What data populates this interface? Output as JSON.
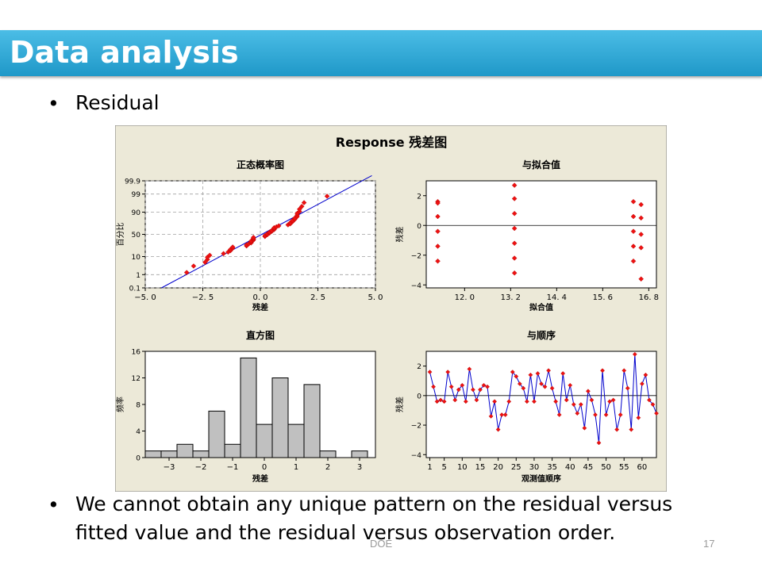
{
  "slide": {
    "title": "Data analysis",
    "bullets": [
      {
        "marker": "•",
        "text": "Residual"
      },
      {
        "marker": "•",
        "text": "We cannot obtain any unique pattern on the residual versus fitted value and the residual versus observation order.",
        "lines": [
          "We cannot obtain any unique pattern on the residual versus",
          "fitted value and the residual versus observation order."
        ]
      }
    ],
    "footer": "DOE",
    "page_number": "17"
  },
  "figure": {
    "title": "Response  残差图",
    "colors": {
      "background": "#ece9d8",
      "plot_bg": "#ffffff",
      "point": "#ee1111",
      "line": "#0000cc",
      "grid": "#a0a0a0",
      "bar": "#c0c0c0"
    }
  },
  "chart_data": [
    {
      "type": "scatter",
      "title": "正态概率图",
      "xlabel": "残差",
      "ylabel": "百分比",
      "xlim": [
        -5.0,
        5.0
      ],
      "xticks": [
        "−5. 0",
        "−2. 5",
        "0. 0",
        "2. 5",
        "5. 0"
      ],
      "xtick_values": [
        -5,
        -2.5,
        0,
        2.5,
        5
      ],
      "yscale": "normal-probability",
      "yticks": [
        "99.9",
        "99",
        "90",
        "50",
        "10",
        "1",
        "0.1"
      ],
      "ytick_values": [
        99.9,
        99,
        90,
        50,
        10,
        1,
        0.1
      ],
      "grid": true,
      "reference_line": true,
      "residuals": [
        -3.2,
        -2.9,
        -2.4,
        -2.3,
        -2.3,
        -2.2,
        -1.6,
        -1.4,
        -1.3,
        -1.3,
        -1.2,
        -1.2,
        -0.6,
        -0.6,
        -0.5,
        -0.4,
        -0.4,
        -0.4,
        -0.3,
        -0.3,
        -0.3,
        -0.3,
        0.2,
        0.2,
        0.3,
        0.3,
        0.4,
        0.4,
        0.5,
        0.5,
        0.6,
        0.6,
        0.6,
        0.7,
        0.8,
        1.2,
        1.3,
        1.3,
        1.4,
        1.4,
        1.5,
        1.5,
        1.6,
        1.6,
        1.6,
        1.7,
        1.7,
        1.8,
        1.9,
        2.9
      ]
    },
    {
      "type": "scatter",
      "title": "与拟合值",
      "xlabel": "拟合值",
      "ylabel": "残差",
      "xlim": [
        11.0,
        17.0
      ],
      "ylim": [
        -4.2,
        3.0
      ],
      "xticks": [
        "12. 0",
        "13. 2",
        "14. 4",
        "15. 6",
        "16. 8"
      ],
      "xtick_values": [
        12.0,
        13.2,
        14.4,
        15.6,
        16.8
      ],
      "yticks": [
        "2",
        "0",
        "−2",
        "−4"
      ],
      "ytick_values": [
        2,
        0,
        -2,
        -4
      ],
      "reference_line": 0,
      "points": [
        [
          11.3,
          1.6
        ],
        [
          11.3,
          1.5
        ],
        [
          11.3,
          0.6
        ],
        [
          11.3,
          -0.4
        ],
        [
          11.3,
          -1.4
        ],
        [
          11.3,
          -2.4
        ],
        [
          13.3,
          2.7
        ],
        [
          13.3,
          1.8
        ],
        [
          13.3,
          0.8
        ],
        [
          13.3,
          -0.2
        ],
        [
          13.3,
          -1.2
        ],
        [
          13.3,
          -2.2
        ],
        [
          13.3,
          -3.2
        ],
        [
          16.4,
          1.6
        ],
        [
          16.4,
          0.6
        ],
        [
          16.4,
          -0.4
        ],
        [
          16.4,
          -1.4
        ],
        [
          16.4,
          -2.4
        ],
        [
          16.6,
          1.4
        ],
        [
          16.6,
          0.5
        ],
        [
          16.6,
          -0.6
        ],
        [
          16.6,
          -1.5
        ],
        [
          16.6,
          -3.6
        ]
      ]
    },
    {
      "type": "bar",
      "title": "直方图",
      "xlabel": "残差",
      "ylabel": "频率",
      "xlim": [
        -3.75,
        3.5
      ],
      "ylim": [
        0,
        16
      ],
      "xticks": [
        "−3",
        "−2",
        "−1",
        "0",
        "1",
        "2",
        "3"
      ],
      "xtick_values": [
        -3,
        -2,
        -1,
        0,
        1,
        2,
        3
      ],
      "yticks": [
        "0",
        "4",
        "8",
        "12",
        "16"
      ],
      "ytick_values": [
        0,
        4,
        8,
        12,
        16
      ],
      "bin_width": 0.5,
      "bin_starts": [
        -3.75,
        -3.25,
        -2.75,
        -2.25,
        -1.75,
        -1.25,
        -0.75,
        -0.25,
        0.25,
        0.75,
        1.25,
        1.75,
        2.25,
        2.75
      ],
      "values": [
        1,
        1,
        2,
        1,
        7,
        2,
        15,
        5,
        12,
        5,
        11,
        1,
        0,
        1
      ]
    },
    {
      "type": "line",
      "title": "与顺序",
      "xlabel": "观测值顺序",
      "ylabel": "残差",
      "xlim": [
        0,
        64
      ],
      "ylim": [
        -4.2,
        3.0
      ],
      "xticks": [
        "1",
        "5",
        "10",
        "15",
        "20",
        "25",
        "30",
        "35",
        "40",
        "45",
        "50",
        "55",
        "60"
      ],
      "xtick_values": [
        1,
        5,
        10,
        15,
        20,
        25,
        30,
        35,
        40,
        45,
        50,
        55,
        60
      ],
      "yticks": [
        "2",
        "0",
        "−2",
        "−4"
      ],
      "ytick_values": [
        2,
        0,
        -2,
        -4
      ],
      "reference_line": 0,
      "markers": true,
      "values": [
        1.6,
        0.6,
        -0.4,
        -0.3,
        -0.4,
        1.6,
        0.6,
        -0.3,
        0.4,
        0.7,
        -0.4,
        1.8,
        0.4,
        -0.3,
        0.4,
        0.7,
        0.6,
        -1.4,
        -0.4,
        -2.3,
        -1.3,
        -1.3,
        -0.4,
        1.6,
        1.3,
        0.8,
        0.5,
        -0.4,
        1.4,
        -0.4,
        1.5,
        0.8,
        0.6,
        1.7,
        0.5,
        -0.4,
        -1.3,
        1.5,
        -0.3,
        0.7,
        -0.6,
        -1.2,
        -0.6,
        -2.2,
        0.3,
        -0.3,
        -1.3,
        -3.2,
        1.7,
        -1.3,
        -0.4,
        -0.3,
        -2.3,
        -1.3,
        1.7,
        0.5,
        -2.3,
        2.8,
        -1.5,
        0.8,
        1.4,
        -0.3,
        -0.6,
        -1.2
      ]
    }
  ]
}
